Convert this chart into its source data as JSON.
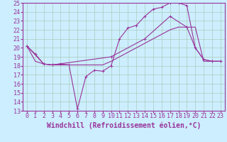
{
  "xlabel": "Windchill (Refroidissement éolien,°C)",
  "bg_color": "#cceeff",
  "grid_color": "#aaccbb",
  "line_color": "#993399",
  "xlim": [
    -0.5,
    23.5
  ],
  "ylim": [
    13,
    25
  ],
  "xticks": [
    0,
    1,
    2,
    3,
    4,
    5,
    6,
    7,
    8,
    9,
    10,
    11,
    12,
    13,
    14,
    15,
    16,
    17,
    18,
    19,
    20,
    21,
    22,
    23
  ],
  "yticks": [
    13,
    14,
    15,
    16,
    17,
    18,
    19,
    20,
    21,
    22,
    23,
    24,
    25
  ],
  "line1_x": [
    0,
    1,
    2,
    3,
    4,
    5,
    6,
    7,
    8,
    9,
    10,
    11,
    12,
    13,
    14,
    15,
    16,
    17,
    18,
    19,
    20,
    21,
    22,
    23
  ],
  "line1_y": [
    20.2,
    19.3,
    18.2,
    18.1,
    18.2,
    18.1,
    13.2,
    16.8,
    17.5,
    17.4,
    18.0,
    21.0,
    22.2,
    22.5,
    23.5,
    24.3,
    24.5,
    25.0,
    25.0,
    24.7,
    20.0,
    18.7,
    18.5,
    18.5
  ],
  "line2_x": [
    0,
    2,
    3,
    10,
    14,
    17,
    19,
    20,
    21,
    22,
    23
  ],
  "line2_y": [
    20.2,
    18.2,
    18.1,
    19.0,
    21.0,
    23.5,
    22.3,
    20.0,
    18.7,
    18.5,
    18.5
  ],
  "line3_x": [
    0,
    1,
    2,
    3,
    4,
    5,
    6,
    7,
    8,
    9,
    10,
    11,
    12,
    13,
    14,
    15,
    16,
    17,
    18,
    19,
    20,
    21,
    22,
    23
  ],
  "line3_y": [
    20.2,
    18.5,
    18.2,
    18.1,
    18.1,
    18.1,
    18.1,
    18.1,
    18.1,
    18.1,
    18.5,
    19.0,
    19.5,
    20.0,
    20.5,
    21.0,
    21.5,
    22.0,
    22.3,
    22.3,
    22.3,
    18.5,
    18.5,
    18.5
  ],
  "font_color": "#993399",
  "tick_font_size": 6,
  "xlabel_font_size": 7
}
